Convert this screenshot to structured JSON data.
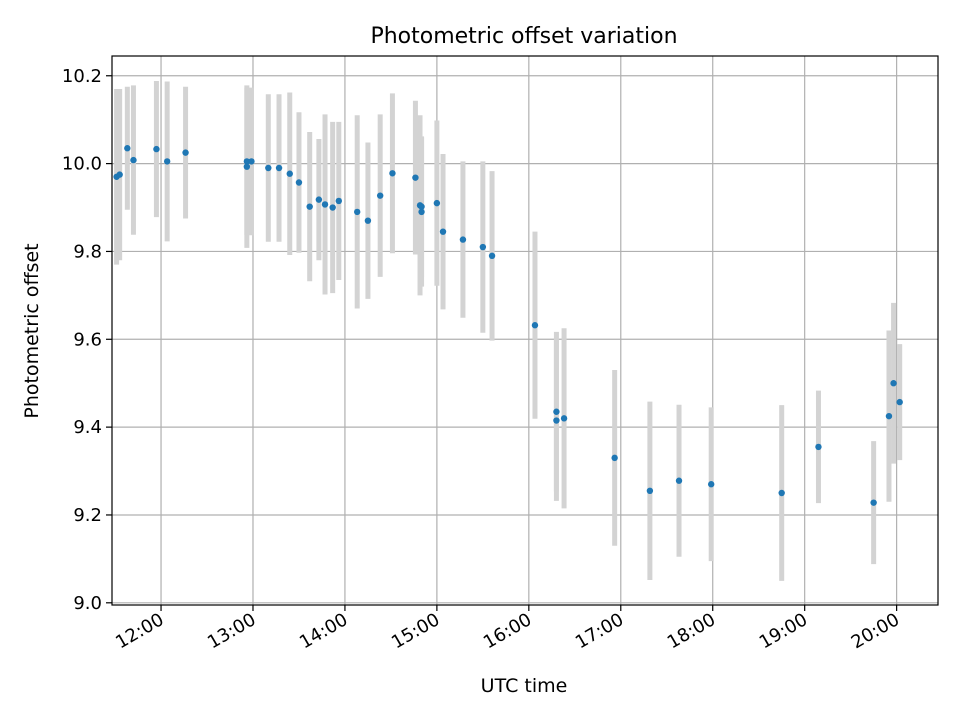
{
  "chart_data": {
    "type": "scatter",
    "title": "Photometric offset variation",
    "xlabel": "UTC time",
    "ylabel": "Photometric offset",
    "xlim": [
      "11:28",
      "20:27"
    ],
    "ylim": [
      8.995,
      10.245
    ],
    "grid": true,
    "colors": {
      "points": "#1f77b4",
      "errorbars": "#d3d3d3"
    },
    "x_ticks": [
      "12:00",
      "13:00",
      "14:00",
      "15:00",
      "16:00",
      "17:00",
      "18:00",
      "19:00",
      "20:00"
    ],
    "y_ticks": [
      9.0,
      9.2,
      9.4,
      9.6,
      9.8,
      10.0,
      10.2
    ],
    "y_tick_labels": [
      "9.0",
      "9.2",
      "9.4",
      "9.6",
      "9.8",
      "10.0",
      "10.2"
    ],
    "series": [
      {
        "x": [
          "11:31",
          "11:33",
          "11:38",
          "11:42",
          "11:57",
          "12:04",
          "12:16",
          "12:56",
          "12:56",
          "12:59",
          "13:10",
          "13:17",
          "13:24",
          "13:30",
          "13:37",
          "13:43",
          "13:47",
          "13:52",
          "13:56",
          "14:08",
          "14:15",
          "14:23",
          "14:31",
          "14:46",
          "14:49",
          "14:50",
          "14:50",
          "15:00",
          "15:04",
          "15:17",
          "15:30",
          "15:36",
          "16:04",
          "16:18",
          "16:18",
          "16:23",
          "16:56",
          "17:19",
          "17:38",
          "17:59",
          "18:45",
          "19:09",
          "19:45",
          "19:55",
          "19:58",
          "20:02"
        ],
        "y": [
          9.97,
          9.975,
          10.035,
          10.008,
          10.033,
          10.005,
          10.025,
          10.005,
          9.993,
          10.005,
          9.99,
          9.99,
          9.977,
          9.957,
          9.902,
          9.918,
          9.907,
          9.9,
          9.915,
          9.89,
          9.87,
          9.927,
          9.978,
          9.968,
          9.905,
          9.89,
          9.902,
          9.91,
          9.845,
          9.827,
          9.81,
          9.79,
          9.632,
          9.435,
          9.415,
          9.42,
          9.33,
          9.255,
          9.278,
          9.27,
          9.25,
          9.355,
          9.228,
          9.425,
          9.5,
          9.457
        ],
        "err": [
          0.2,
          0.195,
          0.14,
          0.17,
          0.155,
          0.182,
          0.15,
          0.168,
          0.185,
          0.168,
          0.168,
          0.168,
          0.185,
          0.16,
          0.17,
          0.138,
          0.205,
          0.195,
          0.18,
          0.22,
          0.178,
          0.185,
          0.182,
          0.175,
          0.205,
          0.17,
          0.16,
          0.188,
          0.177,
          0.178,
          0.195,
          0.193,
          0.213,
          0.182,
          0.183,
          0.205,
          0.2,
          0.203,
          0.173,
          0.175,
          0.2,
          0.128,
          0.14,
          0.195,
          0.183,
          0.132
        ]
      }
    ]
  }
}
